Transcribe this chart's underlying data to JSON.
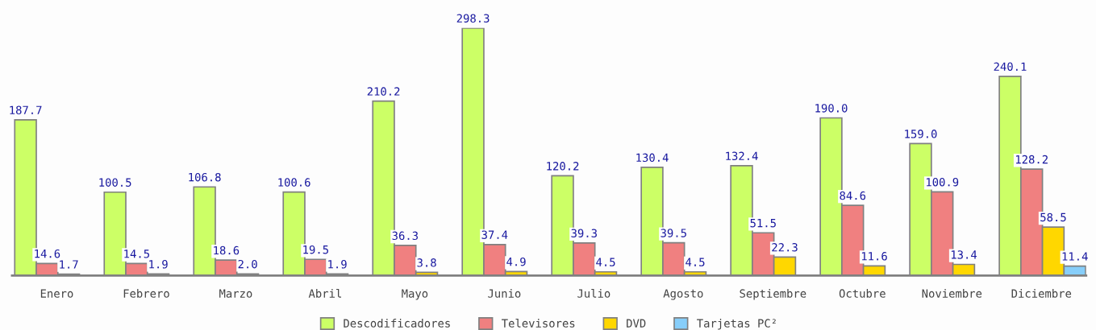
{
  "chart_data": {
    "type": "bar",
    "categories": [
      "Enero",
      "Febrero",
      "Marzo",
      "Abril",
      "Mayo",
      "Junio",
      "Julio",
      "Agosto",
      "Septiembre",
      "Octubre",
      "Noviembre",
      "Diciembre"
    ],
    "series": [
      {
        "name": "Descodificadores",
        "color": "#ccff66",
        "values": [
          187.7,
          100.5,
          106.8,
          100.6,
          210.2,
          298.3,
          120.2,
          130.4,
          132.4,
          190.0,
          159.0,
          240.1
        ],
        "value_labels": [
          "187.7",
          "100.5",
          "106.8",
          "100.6",
          "210.2",
          "298.3",
          "120.2",
          "130.4",
          "132.4",
          "190.0",
          "159.0",
          "240.1"
        ]
      },
      {
        "name": "Televisores",
        "color": "#f08080",
        "values": [
          14.6,
          14.5,
          18.6,
          19.5,
          36.3,
          37.4,
          39.3,
          39.5,
          51.5,
          84.6,
          100.9,
          128.2
        ],
        "value_labels": [
          "14.6",
          "14.5",
          "18.6",
          "19.5",
          "36.3",
          "37.4",
          "39.3",
          "39.5",
          "51.5",
          "84.6",
          "100.9",
          "128.2"
        ]
      },
      {
        "name": "DVD",
        "color": "#ffd700",
        "values": [
          1.7,
          1.9,
          2.0,
          1.9,
          3.8,
          4.9,
          4.5,
          4.5,
          22.3,
          11.6,
          13.4,
          58.5
        ],
        "value_labels": [
          "1.7",
          "1.9",
          "2.0",
          "1.9",
          "3.8",
          "4.9",
          "4.5",
          "4.5",
          "22.3",
          "11.6",
          "13.4",
          "58.5"
        ]
      },
      {
        "name": "Tarjetas PC²",
        "color": "#87cefa",
        "values": [
          null,
          null,
          null,
          null,
          null,
          null,
          null,
          null,
          null,
          null,
          null,
          11.4
        ],
        "value_labels": [
          null,
          null,
          null,
          null,
          null,
          null,
          null,
          null,
          null,
          null,
          null,
          "11.4"
        ]
      }
    ],
    "legend": "bottom",
    "grid": false,
    "tick_labels": "x"
  }
}
